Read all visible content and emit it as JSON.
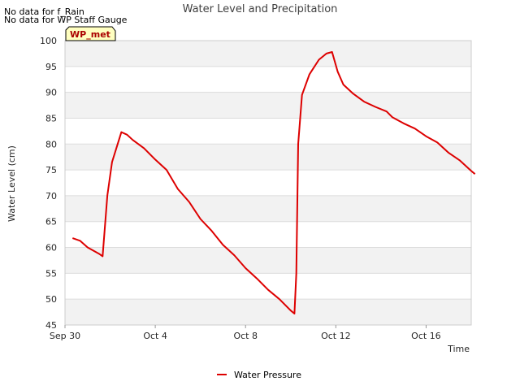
{
  "notices": [
    "No data for f_Rain",
    "No data for WP Staff Gauge"
  ],
  "badge": "WP_met",
  "chart_data": {
    "type": "line",
    "title": "Water Level and Precipitation",
    "xlabel": "Time",
    "ylabel": "Water Level (cm)",
    "ylim": [
      45,
      100
    ],
    "yticks": [
      45,
      50,
      55,
      60,
      65,
      70,
      75,
      80,
      85,
      90,
      95,
      100
    ],
    "xlim": [
      "2023-09-30",
      "2023-10-18"
    ],
    "xticks": [
      {
        "date": "2023-09-30",
        "label": "Sep 30"
      },
      {
        "date": "2023-10-04",
        "label": "Oct 4"
      },
      {
        "date": "2023-10-08",
        "label": "Oct 8"
      },
      {
        "date": "2023-10-12",
        "label": "Oct 12"
      },
      {
        "date": "2023-10-16",
        "label": "Oct 16"
      }
    ],
    "grid": true,
    "legend_position": "bottom-center",
    "series": [
      {
        "name": "Water Pressure",
        "color": "#dd0000",
        "points": [
          [
            "2023-09-30T08:00",
            61.8
          ],
          [
            "2023-09-30T16:00",
            61.3
          ],
          [
            "2023-10-01T00:00",
            60.0
          ],
          [
            "2023-10-01T12:00",
            58.8
          ],
          [
            "2023-10-01T16:00",
            58.3
          ],
          [
            "2023-10-01T21:00",
            70.0
          ],
          [
            "2023-10-02T02:00",
            76.5
          ],
          [
            "2023-10-02T08:00",
            80.0
          ],
          [
            "2023-10-02T12:00",
            82.3
          ],
          [
            "2023-10-02T18:00",
            81.8
          ],
          [
            "2023-10-03T00:00",
            80.8
          ],
          [
            "2023-10-03T12:00",
            79.2
          ],
          [
            "2023-10-04T00:00",
            77.0
          ],
          [
            "2023-10-04T12:00",
            75.0
          ],
          [
            "2023-10-05T00:00",
            71.3
          ],
          [
            "2023-10-05T12:00",
            68.8
          ],
          [
            "2023-10-06T00:00",
            65.5
          ],
          [
            "2023-10-06T12:00",
            63.2
          ],
          [
            "2023-10-07T00:00",
            60.5
          ],
          [
            "2023-10-07T12:00",
            58.5
          ],
          [
            "2023-10-08T00:00",
            56.0
          ],
          [
            "2023-10-08T12:00",
            54.0
          ],
          [
            "2023-10-09T00:00",
            51.8
          ],
          [
            "2023-10-09T12:00",
            50.0
          ],
          [
            "2023-10-10T00:00",
            47.8
          ],
          [
            "2023-10-10T04:00",
            47.2
          ],
          [
            "2023-10-10T06:00",
            55.0
          ],
          [
            "2023-10-10T08:00",
            80.0
          ],
          [
            "2023-10-10T12:00",
            89.5
          ],
          [
            "2023-10-10T20:00",
            93.5
          ],
          [
            "2023-10-11T06:00",
            96.3
          ],
          [
            "2023-10-11T14:00",
            97.5
          ],
          [
            "2023-10-11T20:00",
            97.8
          ],
          [
            "2023-10-12T02:00",
            94.0
          ],
          [
            "2023-10-12T08:00",
            91.5
          ],
          [
            "2023-10-12T18:00",
            89.8
          ],
          [
            "2023-10-13T06:00",
            88.2
          ],
          [
            "2023-10-13T18:00",
            87.2
          ],
          [
            "2023-10-14T06:00",
            86.3
          ],
          [
            "2023-10-14T12:00",
            85.2
          ],
          [
            "2023-10-15T00:00",
            84.0
          ],
          [
            "2023-10-15T12:00",
            83.0
          ],
          [
            "2023-10-16T00:00",
            81.5
          ],
          [
            "2023-10-16T12:00",
            80.3
          ],
          [
            "2023-10-17T00:00",
            78.3
          ],
          [
            "2023-10-17T12:00",
            76.8
          ],
          [
            "2023-10-18T00:00",
            74.8
          ],
          [
            "2023-10-18T04:00",
            74.2
          ]
        ]
      }
    ]
  }
}
